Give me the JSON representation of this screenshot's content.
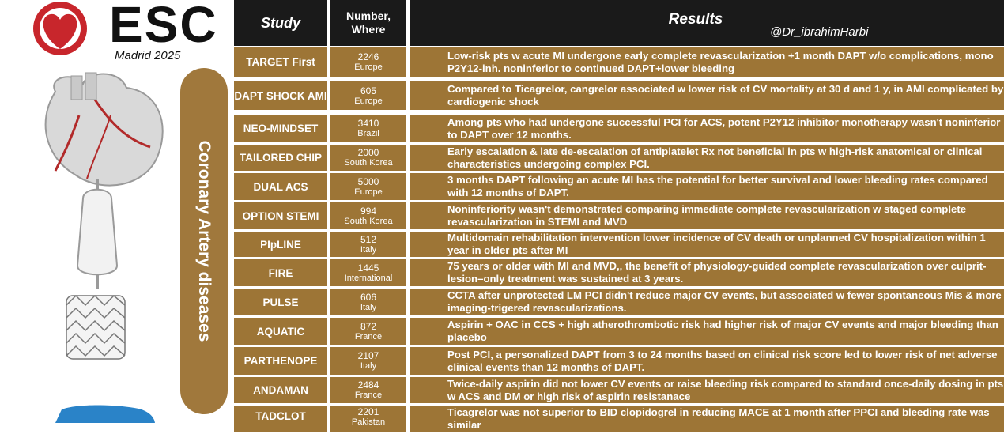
{
  "logo": {
    "brand": "ESC",
    "subtitle": "Madrid 2025",
    "brand_color": "#c8262c"
  },
  "side_banner": {
    "label": "Coronary Artery diseases",
    "color": "#a0783c"
  },
  "header": {
    "study": "Study",
    "number_line1": "Number,",
    "number_line2": "Where",
    "results": "Results",
    "watermark": "@Dr_ibrahimHarbi"
  },
  "rows": [
    {
      "study": "TARGET First",
      "number": "2246",
      "where": "Europe",
      "result": "Low-risk pts w acute MI undergone early complete revascularization +1 month DAPT w/o complications, mono P2Y12-inh. noninferior to continued DAPT+lower bleeding"
    },
    {
      "study": "DAPT SHOCK AMI",
      "number": "605",
      "where": "Europe",
      "result": "Compared to Ticagrelor, cangrelor associated w lower risk of CV mortality at 30 d and 1 y, in AMI complicated by cardiogenic shock"
    },
    {
      "study": "NEO-MINDSET",
      "number": "3410",
      "where": "Brazil",
      "result": "Among pts who had undergone successful PCI for ACS, potent P2Y12 inhibitor monotherapy wasn't noninferior to DAPT over 12 months."
    },
    {
      "study": "TAILORED CHIP",
      "number": "2000",
      "where": "South Korea",
      "result": "Early escalation & late de-escalation of antiplatelet Rx not beneficial in pts w high-risk anatomical or clinical characteristics undergoing complex PCI."
    },
    {
      "study": "DUAL ACS",
      "number": "5000",
      "where": "Europe",
      "result": "3 months DAPT following an acute MI has the potential for better survival and lower bleeding rates compared with 12 months of DAPT."
    },
    {
      "study": "OPTION STEMI",
      "number": "994",
      "where": "South Korea",
      "result": "Noninferiority wasn't demonstrated comparing immediate complete revascularization w staged complete revascularization in STEMI and MVD"
    },
    {
      "study": "PIpLINE",
      "number": "512",
      "where": "Italy",
      "result": "Multidomain rehabilitation intervention lower incidence of CV death or unplanned CV hospitalization within 1 year in older pts after MI"
    },
    {
      "study": "FIRE",
      "number": "1445",
      "where": "International",
      "result": "75 years or older with MI and MVD,, the benefit of physiology-guided complete revascularization over culprit-lesion–only treatment was sustained at 3 years."
    },
    {
      "study": "PULSE",
      "number": "606",
      "where": "Italy",
      "result": "CCTA after unprotected LM PCI didn't reduce major CV events, but associated w fewer spontaneous Mis & more imaging-trigered revascularizations."
    },
    {
      "study": "AQUATIC",
      "number": "872",
      "where": "France",
      "result": "Aspirin + OAC in CCS + high atherothrombotic risk had higher risk of major CV events and major bleeding than placebo"
    },
    {
      "study": "PARTHENOPE",
      "number": "2107",
      "where": "Italy",
      "result": "Post PCI, a personalized DAPT from 3 to 24 months based on clinical risk score led to lower risk of net adverse clinical events than 12 months of DAPT."
    },
    {
      "study": "ANDAMAN",
      "number": "2484",
      "where": "France",
      "result": "Twice-daily aspirin did not lower CV events or raise bleeding risk compared to standard once-daily dosing in pts w ACS and DM or high risk of aspirin resistanace"
    },
    {
      "study": "TADCLOT",
      "number": "2201",
      "where": "Pakistan",
      "result": "Ticagrelor was not superior to BID clopidogrel in reducing MACE at 1 month after PPCI and bleeding rate was similar"
    }
  ]
}
